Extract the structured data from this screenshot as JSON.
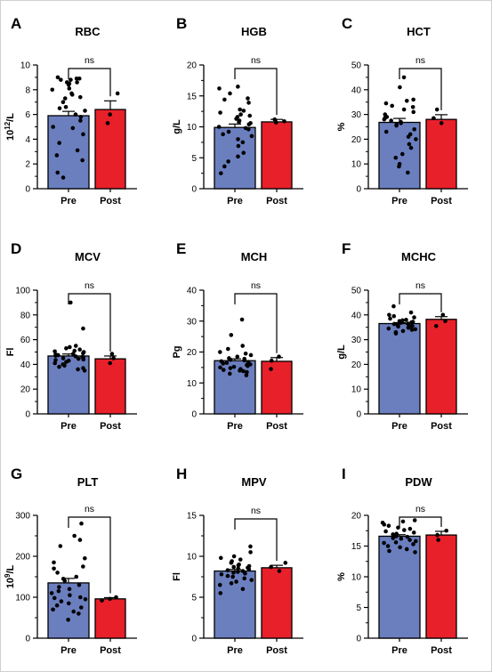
{
  "figure": {
    "panels": [
      {
        "letter": "A",
        "title": "RBC",
        "ylabel_base": "10",
        "ylabel_sup": "12",
        "ylabel_rest": "/L",
        "ylabel": "10¹²/L",
        "ticks": [
          "0",
          "2",
          "4",
          "6",
          "8",
          "10"
        ],
        "significance": "ns"
      },
      {
        "letter": "B",
        "title": "HGB",
        "ylabel": "g/L",
        "ticks": [
          "0",
          "5",
          "10",
          "15",
          "20"
        ],
        "significance": "ns"
      },
      {
        "letter": "C",
        "title": "HCT",
        "ylabel": "%",
        "ticks": [
          "0",
          "10",
          "20",
          "30",
          "40",
          "50"
        ],
        "significance": "ns"
      },
      {
        "letter": "D",
        "title": "MCV",
        "ylabel": "Fl",
        "ticks": [
          "0",
          "20",
          "40",
          "60",
          "80",
          "100"
        ],
        "significance": "ns"
      },
      {
        "letter": "E",
        "title": "MCH",
        "ylabel": "Pg",
        "ticks": [
          "0",
          "10",
          "20",
          "30",
          "40"
        ],
        "significance": "ns"
      },
      {
        "letter": "F",
        "title": "MCHC",
        "ylabel": "g/L",
        "ticks": [
          "0",
          "10",
          "20",
          "30",
          "40",
          "50"
        ],
        "significance": "ns"
      },
      {
        "letter": "G",
        "title": "PLT",
        "ylabel_base": "10",
        "ylabel_sup": "9",
        "ylabel_rest": "/L",
        "ylabel": "10⁹/L",
        "ticks": [
          "0",
          "100",
          "200",
          "300"
        ],
        "significance": "ns"
      },
      {
        "letter": "H",
        "title": "MPV",
        "ylabel": "Fl",
        "ticks": [
          "0",
          "5",
          "10",
          "15"
        ],
        "significance": "ns"
      },
      {
        "letter": "I",
        "title": "PDW",
        "ylabel": "%",
        "ticks": [
          "0",
          "5",
          "10",
          "15",
          "20"
        ],
        "significance": "ns"
      }
    ],
    "categories": [
      "Pre",
      "Post"
    ]
  },
  "colors": {
    "pre_bar": "#6b7fbf",
    "post_bar": "#e8202a",
    "points": "#000000",
    "axis": "#000000"
  },
  "chart_data": [
    {
      "type": "bar",
      "title": "RBC",
      "ylabel": "10¹²/L",
      "ylim": [
        0,
        10
      ],
      "categories": [
        "Pre",
        "Post"
      ],
      "values": [
        5.9,
        6.4
      ],
      "sem": [
        0.35,
        0.7
      ],
      "significance": "ns",
      "points": {
        "Pre": [
          9.0,
          8.9,
          8.8,
          8.6,
          8.8,
          8.9,
          8.6,
          8.4,
          8.5,
          8.1,
          8.0,
          7.7,
          7.6,
          7.3,
          7.4,
          7.0,
          6.6,
          6.5,
          6.3,
          6.0,
          5.8,
          5.5,
          5.0,
          4.9,
          4.4,
          3.7,
          3.1,
          2.7,
          2.3,
          1.3,
          0.9
        ],
        "Post": [
          7.7,
          6.0,
          5.3
        ]
      }
    },
    {
      "type": "bar",
      "title": "HGB",
      "ylabel": "g/L",
      "ylim": [
        0,
        20
      ],
      "categories": [
        "Pre",
        "Post"
      ],
      "values": [
        9.9,
        10.8
      ],
      "sem": [
        0.55,
        0.4
      ],
      "significance": "ns",
      "points": {
        "Pre": [
          16.5,
          16.2,
          15.4,
          14.6,
          14.4,
          13.9,
          12.8,
          12.6,
          12.3,
          12.0,
          11.8,
          11.6,
          11.3,
          11.0,
          10.8,
          10.6,
          10.4,
          10.0,
          9.8,
          9.6,
          9.2,
          8.8,
          8.5,
          8.0,
          7.5,
          6.9,
          5.8,
          5.2,
          4.4,
          3.6,
          2.5
        ],
        "Post": [
          11.2,
          10.9,
          10.7
        ]
      }
    },
    {
      "type": "bar",
      "title": "HCT",
      "ylabel": "%",
      "ylim": [
        0,
        50
      ],
      "categories": [
        "Pre",
        "Post"
      ],
      "values": [
        26.8,
        28.0
      ],
      "sem": [
        1.6,
        1.9
      ],
      "significance": "ns",
      "points": {
        "Pre": [
          45.0,
          41.0,
          36.0,
          35.5,
          34.5,
          33.5,
          33.0,
          32.0,
          31.0,
          30.0,
          29.0,
          28.5,
          28.0,
          27.5,
          27.0,
          26.5,
          26.0,
          25.5,
          24.0,
          23.0,
          22.0,
          21.0,
          20.0,
          18.0,
          16.5,
          14.0,
          12.5,
          10.0,
          9.0,
          6.5
        ],
        "Post": [
          32.0,
          28.5,
          26.5
        ]
      }
    },
    {
      "type": "bar",
      "title": "MCV",
      "ylabel": "Fl",
      "ylim": [
        0,
        100
      ],
      "categories": [
        "Pre",
        "Post"
      ],
      "values": [
        46.8,
        44.5
      ],
      "sem": [
        1.6,
        2.3
      ],
      "significance": "ns",
      "points": {
        "Pre": [
          90.0,
          69.0,
          55.0,
          54.0,
          53.0,
          52.0,
          51.0,
          50.5,
          50.0,
          49.0,
          48.5,
          48.0,
          47.5,
          47.0,
          46.5,
          46.0,
          45.5,
          45.0,
          44.5,
          44.0,
          43.5,
          43.0,
          42.0,
          41.0,
          40.0,
          39.0,
          38.0,
          37.0,
          36.0,
          35.0
        ],
        "Post": [
          48.5,
          45.0,
          41.0
        ]
      }
    },
    {
      "type": "bar",
      "title": "MCH",
      "ylabel": "Pg",
      "ylim": [
        0,
        40
      ],
      "categories": [
        "Pre",
        "Post"
      ],
      "values": [
        17.2,
        17.0
      ],
      "sem": [
        0.6,
        1.2
      ],
      "significance": "ns",
      "points": {
        "Pre": [
          30.5,
          25.5,
          22.0,
          21.0,
          20.0,
          19.5,
          19.0,
          18.5,
          18.0,
          17.8,
          17.5,
          17.3,
          17.0,
          16.8,
          16.5,
          16.3,
          16.0,
          15.8,
          15.5,
          15.2,
          15.0,
          14.8,
          14.5,
          14.2,
          14.0,
          13.8,
          13.5,
          13.0,
          12.5
        ],
        "Post": [
          18.5,
          17.2,
          14.5
        ]
      }
    },
    {
      "type": "bar",
      "title": "MCHC",
      "ylabel": "g/L",
      "ylim": [
        0,
        50
      ],
      "categories": [
        "Pre",
        "Post"
      ],
      "values": [
        36.5,
        38.2
      ],
      "sem": [
        0.4,
        1.1
      ],
      "significance": "ns",
      "points": {
        "Pre": [
          43.5,
          41.0,
          40.0,
          39.5,
          39.0,
          38.5,
          38.0,
          37.8,
          37.5,
          37.2,
          37.0,
          36.8,
          36.5,
          36.3,
          36.0,
          35.8,
          35.5,
          35.3,
          35.0,
          34.8,
          34.5,
          34.2,
          34.0,
          33.5,
          33.0,
          32.5
        ],
        "Post": [
          40.0,
          37.5,
          35.5
        ]
      }
    },
    {
      "type": "bar",
      "title": "PLT",
      "ylabel": "10⁹/L",
      "ylim": [
        0,
        300
      ],
      "categories": [
        "Pre",
        "Post"
      ],
      "values": [
        135,
        96
      ],
      "sem": [
        11,
        3
      ],
      "significance": "ns",
      "points": {
        "Pre": [
          280,
          250,
          240,
          225,
          195,
          185,
          175,
          170,
          160,
          150,
          145,
          140,
          130,
          125,
          120,
          115,
          110,
          105,
          100,
          98,
          95,
          90,
          85,
          80,
          75,
          70,
          65,
          60,
          45
        ],
        "Post": [
          100,
          96,
          92
        ]
      }
    },
    {
      "type": "bar",
      "title": "MPV",
      "ylabel": "Fl",
      "ylim": [
        0,
        15
      ],
      "categories": [
        "Pre",
        "Post"
      ],
      "values": [
        8.2,
        8.6
      ],
      "sem": [
        0.2,
        0.3
      ],
      "significance": "ns",
      "points": {
        "Pre": [
          11.2,
          10.5,
          10.0,
          9.8,
          9.6,
          9.4,
          9.2,
          9.0,
          8.9,
          8.8,
          8.7,
          8.6,
          8.5,
          8.4,
          8.3,
          8.2,
          8.1,
          8.0,
          7.9,
          7.8,
          7.6,
          7.5,
          7.3,
          7.1,
          6.9,
          6.7,
          6.5,
          6.0,
          5.5
        ],
        "Post": [
          9.2,
          8.7,
          8.2
        ]
      }
    },
    {
      "type": "bar",
      "title": "PDW",
      "ylabel": "%",
      "ylim": [
        0,
        20
      ],
      "categories": [
        "Pre",
        "Post"
      ],
      "values": [
        16.6,
        16.8
      ],
      "sem": [
        0.25,
        0.6
      ],
      "significance": "ns",
      "points": {
        "Pre": [
          19.2,
          19.0,
          18.8,
          18.5,
          18.3,
          18.0,
          17.8,
          17.6,
          17.4,
          17.2,
          17.0,
          16.9,
          16.8,
          16.6,
          16.5,
          16.3,
          16.2,
          16.0,
          15.8,
          15.6,
          15.5,
          15.3,
          15.0,
          14.8,
          14.5,
          14.2,
          14.0
        ],
        "Post": [
          17.5,
          16.8,
          16.0
        ]
      }
    }
  ]
}
